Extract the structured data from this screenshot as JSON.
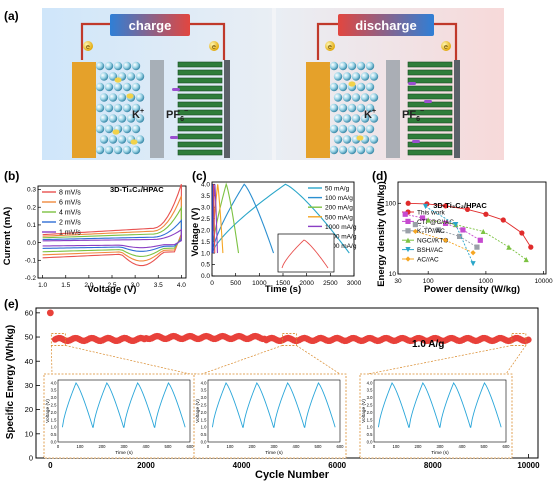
{
  "panels": {
    "a": {
      "label": "(a)",
      "left_title": "charge",
      "right_title": "discharge",
      "electron": "e",
      "ion_k": "K",
      "ion_k_sup": "+",
      "ion_pf": "PF",
      "ion_pf_sub": "6",
      "ion_pf_sup": "−"
    },
    "b": {
      "label": "(b)",
      "sample": "3D-Ti₃C₂/HPAC",
      "xlabel": "Voltage (V)",
      "ylabel": "Current (mA)"
    },
    "c": {
      "label": "(c)",
      "xlabel": "Time (s)",
      "ylabel": "Voltage (V)"
    },
    "d": {
      "label": "(d)",
      "sample": "3D-Ti₃C₂/HPAC",
      "xlabel": "Power density (W/kg)",
      "ylabel": "Energy density (Wh/kg)"
    },
    "e": {
      "label": "(e)",
      "xlabel": "Cycle Number",
      "ylabel": "Specific Energy (Wh/kg)",
      "annotation": "1.0 A/g",
      "inset_xlabel": "Time (s)",
      "inset_ylabel": "Voltage (V)"
    }
  },
  "chart_data": [
    {
      "id": "b",
      "type": "line",
      "xlabel": "Voltage (V)",
      "ylabel": "Current (mA)",
      "xlim": [
        0.9,
        4.1
      ],
      "ylim": [
        -0.2,
        0.32
      ],
      "xticks": [
        1.0,
        1.5,
        2.0,
        2.5,
        3.0,
        3.5,
        4.0
      ],
      "yticks": [
        -0.2,
        -0.1,
        0.0,
        0.1,
        0.2,
        0.3
      ],
      "series": [
        {
          "name": "8 mV/s",
          "color": "#e8514f",
          "amp": 1.0
        },
        {
          "name": "6 mV/s",
          "color": "#f08a3e",
          "amp": 0.8
        },
        {
          "name": "4 mV/s",
          "color": "#7cc242",
          "amp": 0.6
        },
        {
          "name": "2 mV/s",
          "color": "#2f6fd6",
          "amp": 0.38
        },
        {
          "name": "1 mV/s",
          "color": "#8a3fc4",
          "amp": 0.22
        }
      ]
    },
    {
      "id": "c",
      "type": "line",
      "xlabel": "Time (s)",
      "ylabel": "Voltage (V)",
      "xlim": [
        0,
        3000
      ],
      "ylim": [
        0,
        4.1
      ],
      "xticks": [
        0,
        500,
        1000,
        1500,
        2000,
        2500,
        3000
      ],
      "yticks": [
        0.0,
        0.5,
        1.0,
        1.5,
        2.0,
        2.5,
        3.0,
        3.5,
        4.0
      ],
      "series": [
        {
          "name": "50 mA/g",
          "color": "#2aa6c9",
          "charge_end": 1550,
          "end": 2900
        },
        {
          "name": "100 mA/g",
          "color": "#2b8fd0",
          "charge_end": 680,
          "end": 1300
        },
        {
          "name": "200 mA/g",
          "color": "#7cc242",
          "charge_end": 300,
          "end": 560
        },
        {
          "name": "500 mA/g",
          "color": "#f5a623",
          "charge_end": 120,
          "end": 230
        },
        {
          "name": "1000 mA/g",
          "color": "#8a3fc4",
          "charge_end": 60,
          "end": 115
        },
        {
          "name": "2000 mA/g",
          "color": "#e8514f",
          "charge_end": 30,
          "end": 58
        },
        {
          "name": "5000 mA/g",
          "color": "#2f3fb0",
          "charge_end": 12,
          "end": 24
        }
      ]
    },
    {
      "id": "d",
      "type": "scatter",
      "log": true,
      "xlabel": "Power density (W/kg)",
      "ylabel": "Energy density (Wh/kg)",
      "xlim": [
        30,
        11000
      ],
      "ylim": [
        10,
        200
      ],
      "xticks": [
        30,
        100,
        1000,
        10000
      ],
      "yticks": [
        10,
        100
      ],
      "series": [
        {
          "name": "This work",
          "color": "#e02b2b",
          "marker": "circle",
          "x": [
            45,
            95,
            200,
            480,
            1000,
            2000,
            4200,
            6000
          ],
          "y": [
            100,
            98,
            92,
            82,
            70,
            58,
            38,
            24
          ]
        },
        {
          "name": "CTP@C//AC",
          "color": "#c64ad0",
          "marker": "square",
          "x": [
            40,
            80,
            200,
            400,
            800
          ],
          "y": [
            70,
            62,
            52,
            42,
            30
          ]
        },
        {
          "name": "K₂TP//AC",
          "color": "#9aa0a8",
          "marker": "square",
          "x": [
            60,
            150,
            350,
            700
          ],
          "y": [
            50,
            42,
            34,
            24
          ]
        },
        {
          "name": "NGC//KTO",
          "color": "#7cc242",
          "marker": "triangle",
          "x": [
            100,
            300,
            900,
            2500,
            5000
          ],
          "y": [
            58,
            50,
            40,
            24,
            16
          ]
        },
        {
          "name": "BSH//AC",
          "color": "#2aa6c9",
          "marker": "triangle-down",
          "x": [
            90,
            300,
            600
          ],
          "y": [
            90,
            50,
            14
          ]
        },
        {
          "name": "AC//AC",
          "color": "#f5a623",
          "marker": "diamond",
          "x": [
            60,
            200,
            600
          ],
          "y": [
            40,
            30,
            20
          ]
        }
      ]
    },
    {
      "id": "e",
      "type": "scatter",
      "xlabel": "Cycle Number",
      "ylabel": "Specific Energy (Wh/kg)",
      "xlim": [
        -300,
        10200
      ],
      "ylim": [
        0,
        62
      ],
      "xticks": [
        0,
        2000,
        4000,
        6000,
        8000,
        10000
      ],
      "yticks": [
        0,
        10,
        20,
        30,
        40,
        50,
        60
      ],
      "first_point": {
        "x": 0,
        "y": 60
      },
      "plateau": 49,
      "insets": [
        {
          "xticks": [
            0,
            100,
            200,
            300,
            400,
            500,
            600
          ],
          "yticks": [
            0.0,
            0.5,
            1.0,
            1.5,
            2.0,
            2.5,
            3.0,
            3.5,
            4.0
          ]
        },
        {
          "xticks": [
            0,
            100,
            200,
            300,
            400,
            500,
            600
          ],
          "yticks": [
            0.0,
            0.5,
            1.0,
            1.5,
            2.0,
            2.5,
            3.0,
            3.5,
            4.0
          ]
        },
        {
          "xticks": [
            0,
            100,
            200,
            300,
            400,
            500,
            600
          ],
          "yticks": [
            0.0,
            0.5,
            1.0,
            1.5,
            2.0,
            2.5,
            3.0,
            3.5,
            4.0
          ]
        }
      ]
    }
  ]
}
